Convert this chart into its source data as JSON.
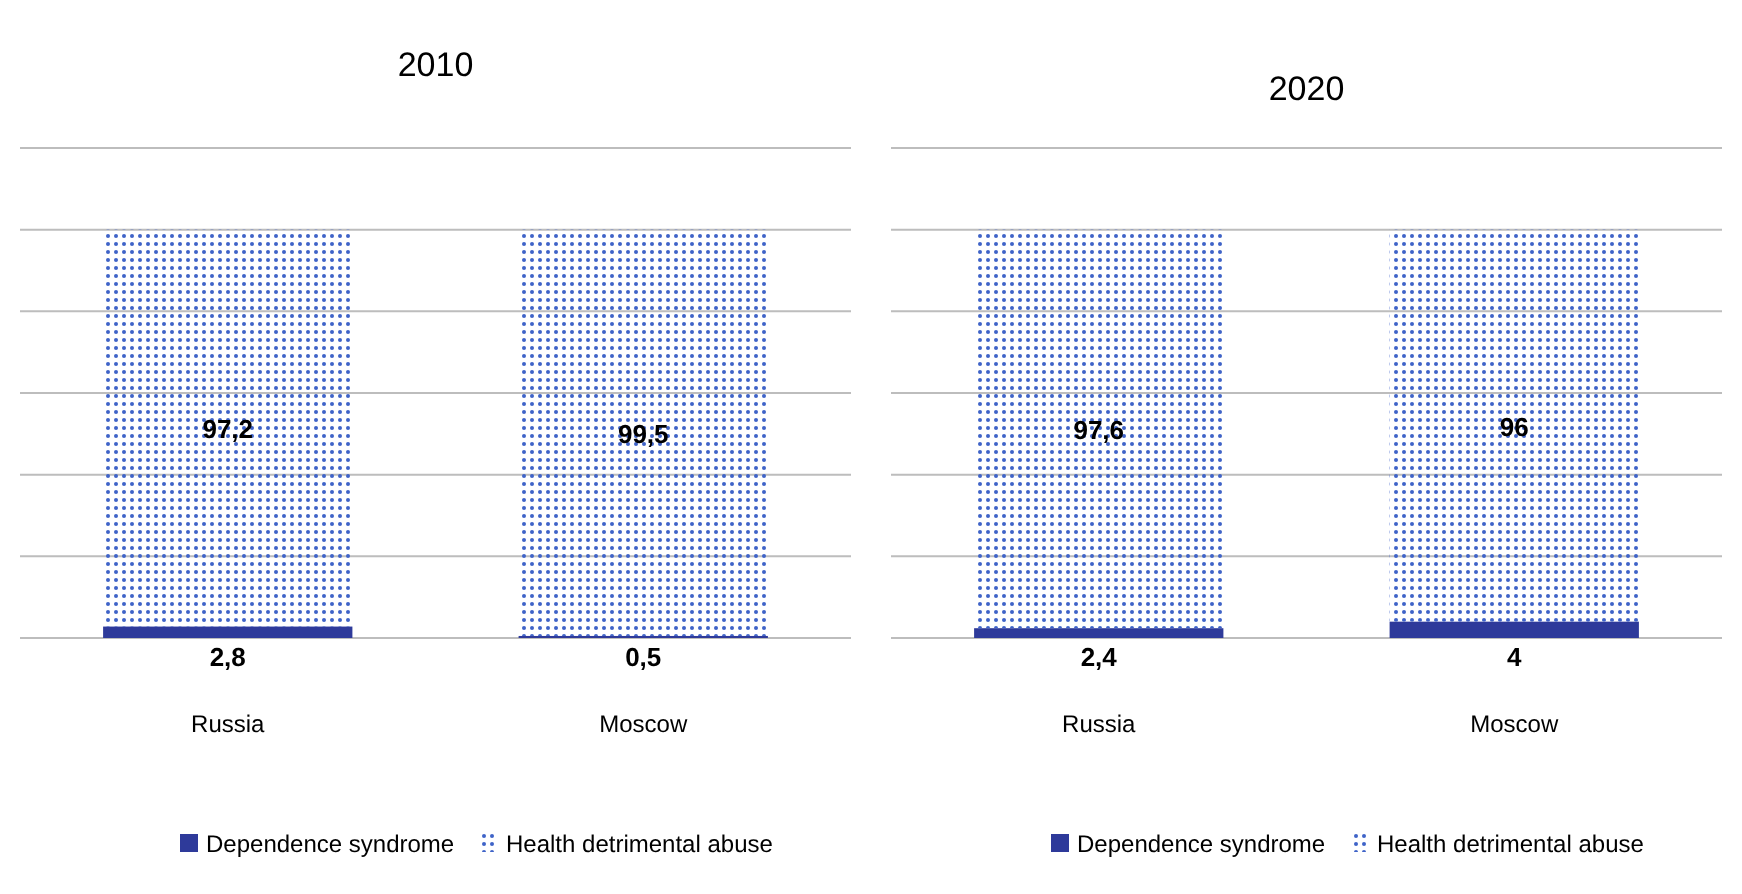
{
  "chart_data": [
    {
      "type": "bar",
      "title": "2010",
      "categories": [
        "Russia",
        "Moscow"
      ],
      "stacked": true,
      "ylim": [
        0,
        120
      ],
      "yticks": [
        {
          "value": 0,
          "label": null
        },
        {
          "value": 20,
          "label": null
        },
        {
          "value": 40,
          "label": null
        },
        {
          "value": 60,
          "label": null
        },
        {
          "value": 80,
          "label": null
        },
        {
          "value": 100,
          "label": null
        },
        {
          "value": 120,
          "label": null
        }
      ],
      "grid": "y",
      "legend": "bottom",
      "tick_labels": "x",
      "series": [
        {
          "name": "Dependence syndrome",
          "color": "#2e3a9a",
          "values": [
            2.8,
            0.5
          ],
          "value_labels": [
            "2,8",
            "0,5"
          ]
        },
        {
          "name": "Health detrimental  abuse",
          "color": "#3f63c8",
          "values": [
            97.2,
            99.5
          ],
          "value_labels": [
            "97,2",
            "99,5"
          ]
        }
      ]
    },
    {
      "type": "bar",
      "title": "2020",
      "categories": [
        "Russia",
        "Moscow"
      ],
      "stacked": true,
      "ylim": [
        0,
        120
      ],
      "yticks": [
        {
          "value": 0,
          "label": null
        },
        {
          "value": 20,
          "label": null
        },
        {
          "value": 40,
          "label": null
        },
        {
          "value": 60,
          "label": null
        },
        {
          "value": 80,
          "label": null
        },
        {
          "value": 100,
          "label": null
        },
        {
          "value": 120,
          "label": null
        }
      ],
      "grid": "y",
      "legend": "bottom",
      "tick_labels": "x",
      "series": [
        {
          "name": "Dependence syndrome",
          "color": "#2e3a9a",
          "values": [
            2.4,
            4
          ],
          "value_labels": [
            "2,4",
            "4"
          ]
        },
        {
          "name": "Health detrimental  abuse",
          "color": "#3f63c8",
          "values": [
            97.6,
            96
          ],
          "value_labels": [
            "97,6",
            "96"
          ]
        }
      ]
    }
  ]
}
